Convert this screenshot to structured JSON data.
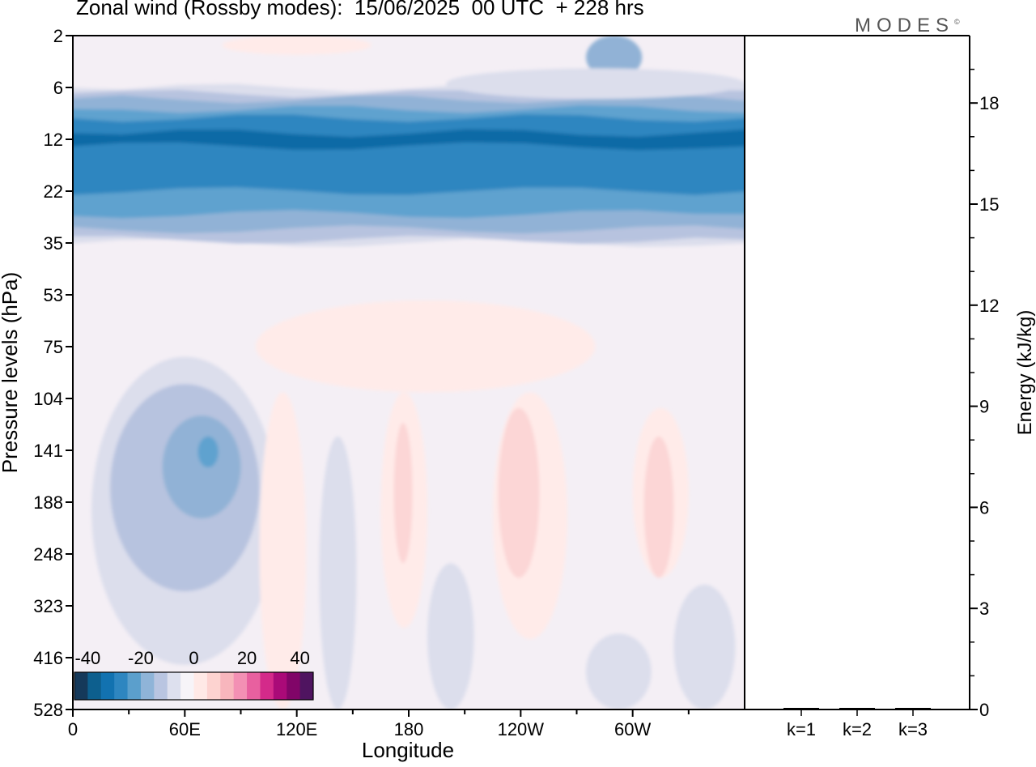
{
  "title": "Zonal wind (Rossby modes):  15/06/2025  00 UTC  + 228 hrs",
  "logo": {
    "text": "MODES",
    "mark": "©"
  },
  "colors": {
    "colorbar": [
      "#15395a",
      "#0d5f8e",
      "#1272b0",
      "#2e86c0",
      "#5b9fcc",
      "#8fb4d8",
      "#b9c5e1",
      "#dde0ee",
      "#f7f4f8",
      "#ffe9e6",
      "#fdd3d0",
      "#f8b6bd",
      "#f390b4",
      "#e8609f",
      "#d42a8a",
      "#aa0a78",
      "#810568",
      "#4f1460"
    ],
    "level_fill": {
      "-30": "#0d6aa6",
      "-25": "#2e86c0",
      "-20": "#5ea2cf",
      "-15": "#91b2d6",
      "-10": "#b7c3df",
      "-5": "#dcdeec",
      "0": "#f4eff5",
      "5": "#ffebe9",
      "10": "#fcd6d6"
    }
  },
  "chart_data": [
    {
      "type": "heatmap",
      "title": "Zonal wind (Rossby modes):  15/06/2025  00 UTC  + 228 hrs",
      "xlabel": "Longitude",
      "ylabel": "Pressure levels (hPa)",
      "x_ticks": [
        "0",
        "60E",
        "120E",
        "180",
        "120W",
        "60W"
      ],
      "y_ticks": [
        "2",
        "6",
        "12",
        "22",
        "35",
        "53",
        "75",
        "104",
        "141",
        "188",
        "248",
        "323",
        "416",
        "528"
      ],
      "xlim": [
        0,
        360
      ],
      "colorbar": {
        "ticks": [
          "-40",
          "-20",
          "0",
          "20",
          "40"
        ],
        "range": [
          -45,
          45
        ],
        "step": 5
      },
      "bands": [
        {
          "level": -5,
          "levels": [
            6,
            35
          ]
        },
        {
          "level": -10,
          "levels": [
            6.5,
            34
          ]
        },
        {
          "level": -15,
          "levels": [
            7,
            31
          ]
        },
        {
          "level": -20,
          "levels": [
            8,
            27
          ]
        },
        {
          "level": -25,
          "levels": [
            9,
            22
          ]
        },
        {
          "level": -30,
          "levels": [
            11,
            13
          ]
        }
      ],
      "features": [
        {
          "level": -5,
          "lon": [
            10,
            110
          ],
          "levels": [
            80,
            430
          ]
        },
        {
          "level": -10,
          "lon": [
            20,
            100
          ],
          "levels": [
            95,
            300
          ]
        },
        {
          "level": -15,
          "lon": [
            48,
            90
          ],
          "levels": [
            115,
            205
          ]
        },
        {
          "level": -20,
          "lon": [
            67,
            78
          ],
          "levels": [
            130,
            155
          ]
        },
        {
          "level": -5,
          "lon": [
            132,
            152
          ],
          "levels": [
            130,
            528
          ]
        },
        {
          "level": -5,
          "lon": [
            190,
            215
          ],
          "levels": [
            260,
            528
          ]
        },
        {
          "level": -5,
          "lon": [
            275,
            310
          ],
          "levels": [
            370,
            528
          ]
        },
        {
          "level": -5,
          "lon": [
            322,
            355
          ],
          "levels": [
            290,
            528
          ]
        },
        {
          "level": -15,
          "lon": [
            275,
            305
          ],
          "levels": [
            2,
            5
          ]
        },
        {
          "level": -5,
          "lon": [
            200,
            360
          ],
          "levels": [
            4,
            7
          ]
        },
        {
          "level": 5,
          "lon": [
            98,
            280
          ],
          "levels": [
            55,
            100
          ]
        },
        {
          "level": 5,
          "lon": [
            100,
            125
          ],
          "levels": [
            100,
            528
          ]
        },
        {
          "level": 5,
          "lon": [
            165,
            190
          ],
          "levels": [
            100,
            360
          ]
        },
        {
          "level": 5,
          "lon": [
            225,
            265
          ],
          "levels": [
            100,
            380
          ]
        },
        {
          "level": 5,
          "lon": [
            300,
            330
          ],
          "levels": [
            110,
            280
          ]
        },
        {
          "level": 5,
          "lon": [
            80,
            160
          ],
          "levels": [
            2,
            3
          ]
        },
        {
          "level": 10,
          "lon": [
            172,
            182
          ],
          "levels": [
            120,
            260
          ]
        },
        {
          "level": 10,
          "lon": [
            228,
            250
          ],
          "levels": [
            110,
            280
          ]
        },
        {
          "level": 10,
          "lon": [
            306,
            322
          ],
          "levels": [
            130,
            280
          ]
        }
      ]
    },
    {
      "type": "bar",
      "categories": [
        "k=1",
        "k=2",
        "k=3"
      ],
      "values": [
        0.03,
        0.01,
        0.01
      ],
      "ylabel": "Energy (kJ/kg)",
      "ylim": [
        0,
        20
      ],
      "y_ticks": [
        "0",
        "3",
        "6",
        "9",
        "12",
        "15",
        "18"
      ]
    }
  ]
}
